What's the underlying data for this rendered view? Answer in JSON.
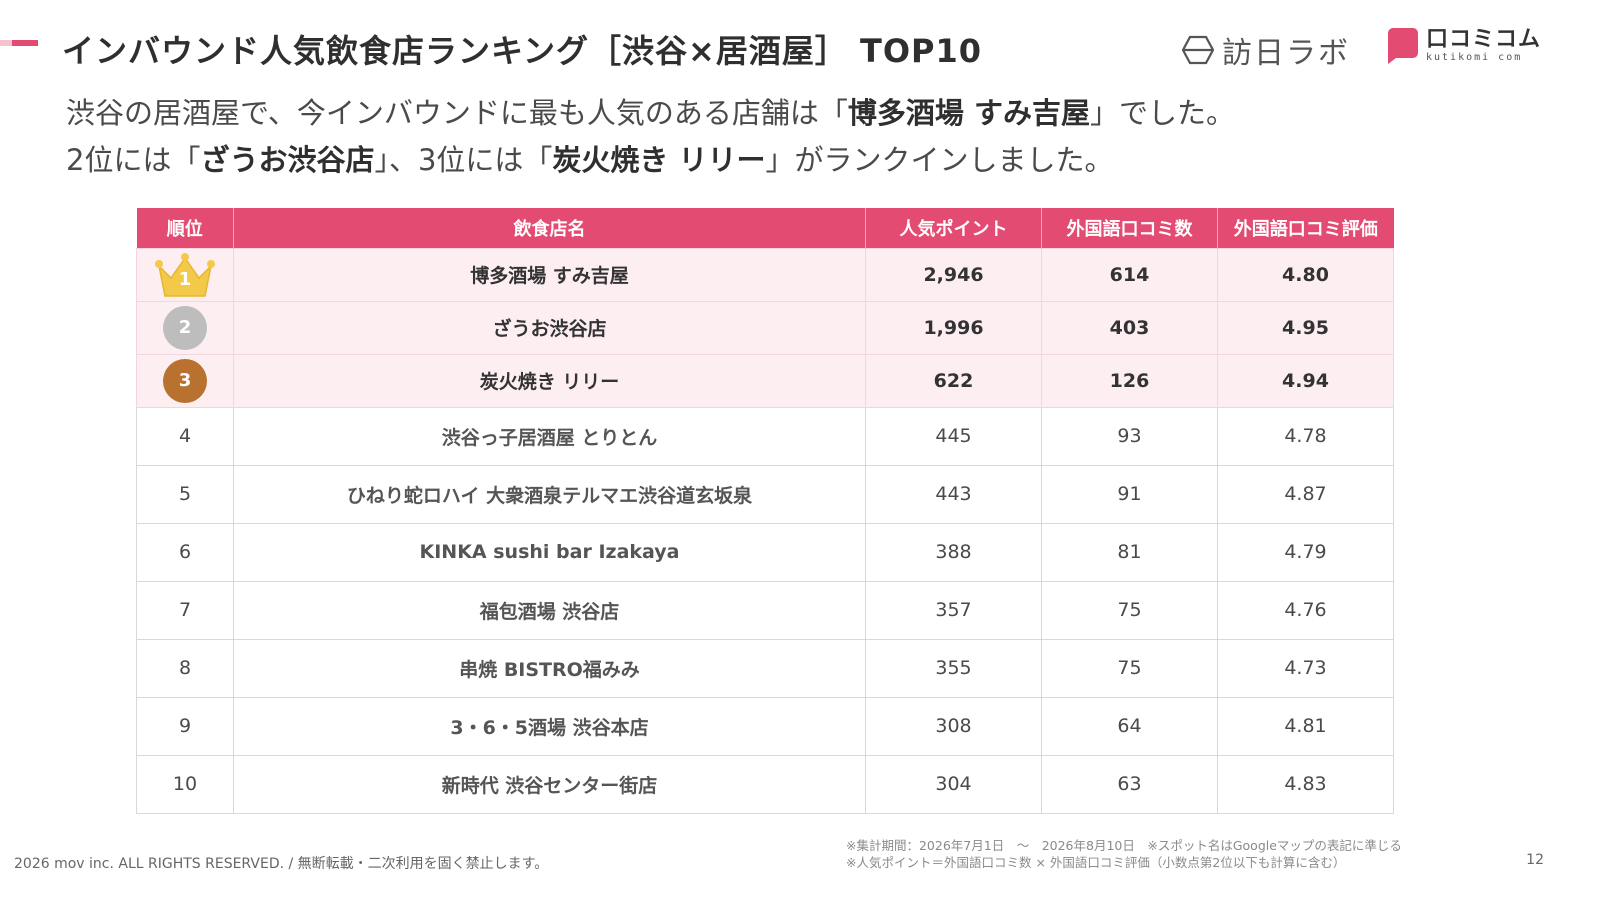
{
  "header": {
    "title": "インバウンド人気飲食店ランキング［渋谷×居酒屋］ TOP10",
    "logo_houmon": "訪日ラボ",
    "logo_kuchikomi_jp": "口コミコム",
    "logo_kuchikomi_en": "kutikomi com"
  },
  "lead": {
    "line1_pre": "渋谷の居酒屋で、今インバウンドに最も人気のある店舗は「",
    "line1_bold": "博多酒場 すみ吉屋",
    "line1_post": "」でした。",
    "line2_a": "2位には「",
    "line2_b": "ざうお渋谷店",
    "line2_c": "」、3位には「",
    "line2_d": "炭火焼き リリー",
    "line2_e": "」がランクインしました。"
  },
  "table": {
    "headers": [
      "順位",
      "飲食店名",
      "人気ポイント",
      "外国語口コミ数",
      "外国語口コミ評価"
    ],
    "rows": [
      {
        "rank": "1",
        "name": "博多酒場 すみ吉屋",
        "points": "2,946",
        "reviews": "614",
        "rating": "4.80"
      },
      {
        "rank": "2",
        "name": "ざうお渋谷店",
        "points": "1,996",
        "reviews": "403",
        "rating": "4.95"
      },
      {
        "rank": "3",
        "name": "炭火焼き リリー",
        "points": "622",
        "reviews": "126",
        "rating": "4.94"
      },
      {
        "rank": "4",
        "name": "渋谷っ子居酒屋 とりとん",
        "points": "445",
        "reviews": "93",
        "rating": "4.78"
      },
      {
        "rank": "5",
        "name": "ひねり蛇ロハイ 大衆酒泉テルマエ渋谷道玄坂泉",
        "points": "443",
        "reviews": "91",
        "rating": "4.87"
      },
      {
        "rank": "6",
        "name": "KINKA sushi bar Izakaya",
        "points": "388",
        "reviews": "81",
        "rating": "4.79"
      },
      {
        "rank": "7",
        "name": "福包酒場 渋谷店",
        "points": "357",
        "reviews": "75",
        "rating": "4.76"
      },
      {
        "rank": "8",
        "name": "串焼 BISTRO福みみ",
        "points": "355",
        "reviews": "75",
        "rating": "4.73"
      },
      {
        "rank": "9",
        "name": "3・6・5酒場 渋谷本店",
        "points": "308",
        "reviews": "64",
        "rating": "4.81"
      },
      {
        "rank": "10",
        "name": "新時代 渋谷センター街店",
        "points": "304",
        "reviews": "63",
        "rating": "4.83"
      }
    ]
  },
  "footer": {
    "note1": "※集計期間：2026年7月1日　～　2026年8月10日　※スポット名はGoogleマップの表記に準じる",
    "note2": "※人気ポイント＝外国語口コミ数 × 外国語口コミ評価（小数点第2位以下も計算に含む）",
    "copyright": "2026 mov inc. ALL RIGHTS RESERVED. / 無断転載・二次利用を固く禁止します。",
    "page_number": "12"
  },
  "colors": {
    "accent": "#e34b72",
    "top_row_bg": "#fdeef2",
    "gold": "#f3c94a",
    "silver": "#bdbdbd",
    "bronze": "#b8712e"
  },
  "icons": {
    "rank1": "gold-crown-icon",
    "rank2": "silver-medal-icon",
    "rank3": "bronze-medal-icon",
    "houmon_logo": "hexagon-logo-icon",
    "kuchikomi_logo": "speech-bubble-logo-icon"
  }
}
